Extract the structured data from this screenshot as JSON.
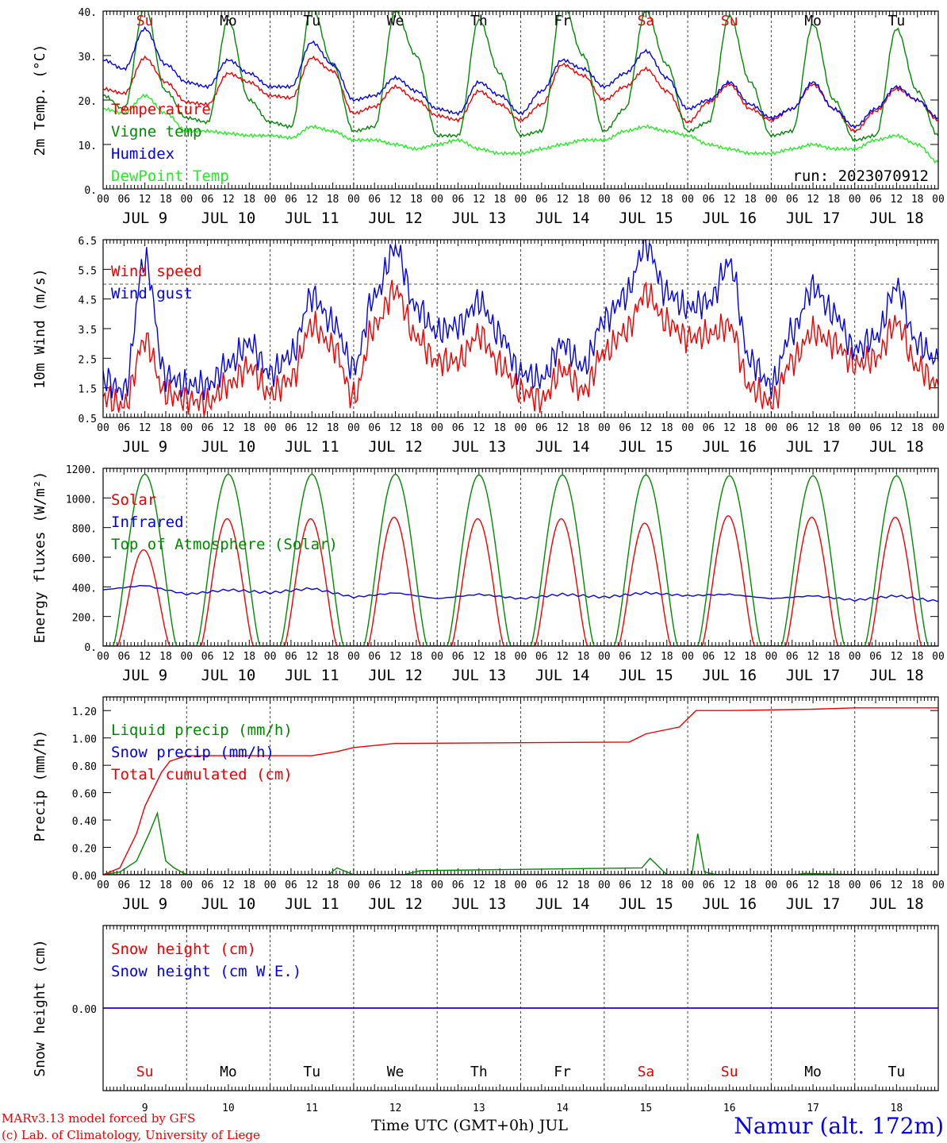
{
  "colors": {
    "red": "#ee0000",
    "green": "#008800",
    "blue": "#0000ee",
    "light_green": "#22ee22",
    "purple": "#7a3fa8"
  },
  "panel_common": {
    "hour_labels": [
      "00",
      "06",
      "12",
      "18"
    ],
    "final_hour_label": "00",
    "date_labels": [
      "JUL  9",
      "JUL 10",
      "JUL 11",
      "JUL 12",
      "JUL 13",
      "JUL 14",
      "JUL 15",
      "JUL 16",
      "JUL 17",
      "JUL 18"
    ],
    "weekdays": [
      "Su",
      "Mo",
      "Tu",
      "We",
      "Th",
      "Fr",
      "Sa",
      "Su",
      "Mo",
      "Tu"
    ],
    "weekend_flags": [
      true,
      false,
      false,
      false,
      false,
      false,
      true,
      true,
      false,
      false
    ],
    "x_range_days": [
      0,
      10
    ]
  },
  "chart_data": [
    {
      "type": "line",
      "ylabel": "2m Temp. (°C)",
      "ylim": [
        0,
        40
      ],
      "y_ticks": [
        "40.",
        "30.",
        "20.",
        "10.",
        "0."
      ],
      "y_tick_values": [
        40,
        30,
        20,
        10,
        0
      ],
      "annotation": "run: 2023070912",
      "series": [
        {
          "name": "Temperature",
          "color": "#ee0000",
          "x": [
            0,
            0.25,
            0.5,
            0.75,
            1,
            1.25,
            1.5,
            1.75,
            2,
            2.25,
            2.5,
            2.75,
            3,
            3.25,
            3.5,
            3.75,
            4,
            4.25,
            4.5,
            4.75,
            5,
            5.25,
            5.5,
            5.75,
            6,
            6.25,
            6.5,
            6.75,
            7,
            7.25,
            7.5,
            7.75,
            8,
            8.25,
            8.5,
            8.75,
            9,
            9.25,
            9.5,
            9.75,
            10
          ],
          "y": [
            22.5,
            21.5,
            29.5,
            24,
            19.5,
            19,
            26,
            24,
            21,
            20.5,
            29.5,
            26.5,
            17,
            18.5,
            23,
            20,
            16.5,
            15.5,
            22,
            19,
            15.5,
            19,
            28,
            25.5,
            20,
            23,
            27,
            22,
            15,
            19.5,
            23.5,
            18,
            15.5,
            18,
            23.5,
            18,
            13,
            17.5,
            22.5,
            20,
            15.5
          ]
        },
        {
          "name": "Vigne temp",
          "color": "#008800",
          "x": [
            0,
            0.25,
            0.5,
            0.75,
            1,
            1.25,
            1.5,
            1.75,
            2,
            2.25,
            2.5,
            2.75,
            3,
            3.25,
            3.5,
            3.75,
            4,
            4.25,
            4.5,
            4.75,
            5,
            5.25,
            5.5,
            5.75,
            6,
            6.25,
            6.5,
            6.75,
            7,
            7.25,
            7.5,
            7.75,
            8,
            8.25,
            8.5,
            8.75,
            9,
            9.25,
            9.5,
            9.75,
            10
          ],
          "y": [
            21,
            18,
            41,
            22,
            16,
            15,
            38,
            20,
            15,
            14,
            41,
            28,
            13,
            14,
            40,
            30,
            12,
            12,
            38,
            26,
            12,
            13,
            42,
            30,
            13,
            18,
            40,
            28,
            13,
            15,
            39,
            24,
            12,
            13,
            37,
            20,
            11,
            12,
            36,
            22,
            12
          ]
        },
        {
          "name": "Humidex",
          "color": "#0000ee",
          "x": [
            0,
            0.25,
            0.5,
            0.75,
            1,
            1.25,
            1.5,
            1.75,
            2,
            2.25,
            2.5,
            2.75,
            3,
            3.25,
            3.5,
            3.75,
            4,
            4.25,
            4.5,
            4.75,
            5,
            5.25,
            5.5,
            5.75,
            6,
            6.25,
            6.5,
            6.75,
            7,
            7.25,
            7.5,
            7.75,
            8,
            8.25,
            8.5,
            8.75,
            9,
            9.25,
            9.5,
            9.75,
            10
          ],
          "y": [
            29,
            27,
            36,
            28,
            24,
            23,
            29,
            26,
            23,
            23,
            33,
            28,
            20,
            21,
            25,
            22,
            18,
            17,
            24,
            21,
            17,
            22,
            29,
            27,
            23,
            26,
            31,
            25,
            18,
            20,
            24,
            19,
            16,
            18,
            24,
            18,
            14,
            18,
            23,
            20,
            16
          ]
        },
        {
          "name": "DewPoint Temp",
          "color": "#22ee22",
          "x": [
            0,
            0.25,
            0.5,
            0.75,
            1,
            1.25,
            1.5,
            1.75,
            2,
            2.25,
            2.5,
            2.75,
            3,
            3.25,
            3.5,
            3.75,
            4,
            4.25,
            4.5,
            4.75,
            5,
            5.25,
            5.5,
            5.75,
            6,
            6.25,
            6.5,
            6.75,
            7,
            7.25,
            7.5,
            7.75,
            8,
            8.25,
            8.5,
            8.75,
            9,
            9.25,
            9.5,
            9.75,
            10
          ],
          "y": [
            18,
            17,
            21,
            17,
            13,
            13,
            12.5,
            12,
            12,
            11.5,
            14,
            13,
            11,
            11,
            10,
            9,
            10,
            11,
            9,
            8,
            8,
            9,
            10,
            11,
            11,
            13,
            14,
            13,
            12,
            10,
            9,
            8,
            8,
            9,
            10,
            9,
            9,
            11,
            12,
            10,
            6
          ]
        }
      ]
    },
    {
      "type": "line",
      "ylabel": "10m Wind (m/s)",
      "ylim": [
        0.5,
        6.5
      ],
      "y_ticks": [
        "6.5",
        "5.5",
        "4.5",
        "3.5",
        "2.5",
        "1.5",
        "0.5"
      ],
      "y_tick_values": [
        6.5,
        5.5,
        4.5,
        3.5,
        2.5,
        1.5,
        0.5
      ],
      "reference_line": 5,
      "series": [
        {
          "name": "Wind speed",
          "color": "#ee0000",
          "x": [
            0,
            0.25,
            0.5,
            0.75,
            1,
            1.25,
            1.5,
            1.75,
            2,
            2.25,
            2.5,
            2.75,
            3,
            3.25,
            3.5,
            3.75,
            4,
            4.25,
            4.5,
            4.75,
            5,
            5.25,
            5.5,
            5.75,
            6,
            6.25,
            6.5,
            6.75,
            7,
            7.25,
            7.5,
            7.75,
            8,
            8.25,
            8.5,
            8.75,
            9,
            9.25,
            9.5,
            9.75,
            10
          ],
          "y": [
            1.2,
            0.9,
            3.1,
            1.3,
            1.1,
            1.0,
            1.6,
            2.2,
            1.3,
            1.8,
            3.6,
            2.9,
            1.2,
            3.6,
            4.8,
            3.2,
            2.4,
            2.4,
            3.3,
            2.3,
            1.4,
            1.1,
            2.1,
            1.4,
            2.7,
            3.4,
            4.7,
            3.7,
            3.2,
            3.3,
            3.6,
            1.5,
            1.0,
            2.4,
            3.4,
            3.0,
            2.3,
            2.5,
            3.7,
            2.2,
            1.6
          ]
        },
        {
          "name": "Wind gust",
          "color": "#0000ee",
          "x": [
            0,
            0.25,
            0.5,
            0.75,
            1,
            1.25,
            1.5,
            1.75,
            2,
            2.25,
            2.5,
            2.75,
            3,
            3.25,
            3.5,
            3.75,
            4,
            4.25,
            4.5,
            4.75,
            5,
            5.25,
            5.5,
            5.75,
            6,
            6.25,
            6.5,
            6.75,
            7,
            7.25,
            7.5,
            7.75,
            8,
            8.25,
            8.5,
            8.75,
            9,
            9.25,
            9.5,
            9.75,
            10
          ],
          "y": [
            1.8,
            1.4,
            5.8,
            1.9,
            1.6,
            1.6,
            2.3,
            3.0,
            2.0,
            2.6,
            4.6,
            3.7,
            2.2,
            4.6,
            6.2,
            4.2,
            3.4,
            3.6,
            4.4,
            3.3,
            2.0,
            1.8,
            3.0,
            2.2,
            3.8,
            4.6,
            6.3,
            4.7,
            4.2,
            4.4,
            5.7,
            2.4,
            1.6,
            3.4,
            4.9,
            4.0,
            2.8,
            3.2,
            4.9,
            3.0,
            2.4
          ]
        }
      ]
    },
    {
      "type": "line",
      "ylabel": "Energy fluxes (W/m²)",
      "ylim": [
        0,
        1200
      ],
      "y_ticks": [
        "1200.",
        "1000.",
        "800.",
        "600.",
        "400.",
        "200.",
        "0."
      ],
      "y_tick_values": [
        1200,
        1000,
        800,
        600,
        400,
        200,
        0
      ],
      "series": [
        {
          "name": "Solar",
          "color": "#ee0000",
          "daily_peaks": [
            650,
            860,
            860,
            870,
            860,
            860,
            830,
            880,
            870,
            870
          ]
        },
        {
          "name": "Infrared",
          "color": "#0000ee",
          "x": [
            0,
            0.5,
            1,
            1.5,
            2,
            2.5,
            3,
            3.5,
            4,
            4.5,
            5,
            5.5,
            6,
            6.5,
            7,
            7.5,
            8,
            8.5,
            9,
            9.5,
            10
          ],
          "y": [
            380,
            410,
            350,
            380,
            360,
            390,
            330,
            360,
            320,
            350,
            320,
            350,
            330,
            360,
            340,
            350,
            320,
            340,
            310,
            340,
            300
          ]
        },
        {
          "name": "Top of Atmosphere (Solar)",
          "color": "#008800",
          "daily_peaks": [
            1160,
            1160,
            1160,
            1160,
            1155,
            1155,
            1155,
            1150,
            1150,
            1150
          ]
        }
      ]
    },
    {
      "type": "line",
      "ylabel": "Precip (mm/h)",
      "ylim": [
        0,
        1.3
      ],
      "y_ticks": [
        "1.20",
        "1.00",
        "0.80",
        "0.60",
        "0.40",
        "0.20",
        "0.00"
      ],
      "y_tick_values": [
        1.2,
        1.0,
        0.8,
        0.6,
        0.4,
        0.2,
        0.0
      ],
      "series": [
        {
          "name": "Liquid precip (mm/h)",
          "color": "#008800",
          "x": [
            0,
            0.2,
            0.4,
            0.55,
            0.65,
            0.75,
            0.85,
            1.0,
            2.7,
            2.8,
            3.0,
            3.6,
            3.8,
            6.45,
            6.55,
            6.75,
            7.05,
            7.12,
            7.2,
            7.35,
            8.3,
            8.4,
            9.0
          ],
          "y": [
            0,
            0.02,
            0.1,
            0.3,
            0.45,
            0.1,
            0.05,
            0,
            0,
            0.05,
            0,
            0,
            0.03,
            0.05,
            0.12,
            0,
            0,
            0.3,
            0.02,
            0,
            0,
            0.01,
            0
          ]
        },
        {
          "name": "Snow precip (mm/h)",
          "color": "#0000ee",
          "x": [
            0,
            10
          ],
          "y": [
            0,
            0
          ]
        },
        {
          "name": "Total cumulated (cm)",
          "color": "#ee0000",
          "x": [
            0,
            0.2,
            0.4,
            0.5,
            0.7,
            0.8,
            1.0,
            2.5,
            2.8,
            3.0,
            3.5,
            6.3,
            6.5,
            6.9,
            7.1,
            7.5,
            8.5,
            9.0,
            10
          ],
          "y": [
            0,
            0.05,
            0.3,
            0.5,
            0.75,
            0.83,
            0.87,
            0.87,
            0.9,
            0.93,
            0.96,
            0.97,
            1.03,
            1.08,
            1.2,
            1.2,
            1.21,
            1.22,
            1.22
          ]
        }
      ]
    },
    {
      "type": "line",
      "ylabel": "Snow height (cm)",
      "ylim": [
        -1,
        1
      ],
      "y_ticks": [
        "0.00"
      ],
      "y_tick_values": [
        0
      ],
      "series": [
        {
          "name": "Snow height (cm)",
          "color": "#ee0000",
          "x": [
            0,
            10
          ],
          "y": [
            0,
            0
          ]
        },
        {
          "name": "Snow height (cm W.E.)",
          "color": "#0000ee",
          "x": [
            0,
            10
          ],
          "y": [
            0,
            0
          ]
        }
      ]
    }
  ],
  "bottom_axis": {
    "day_numbers": [
      "9",
      "10",
      "11",
      "12",
      "13",
      "14",
      "15",
      "16",
      "17",
      "18"
    ],
    "xlabel": "Time UTC (GMT+0h) JUL"
  },
  "footer": {
    "credit_line1": "MARv3.13 model forced by GFS",
    "credit_line2": "(c) Lab. of Climatology, University of Liege",
    "station": "Namur (alt. 172m)"
  }
}
